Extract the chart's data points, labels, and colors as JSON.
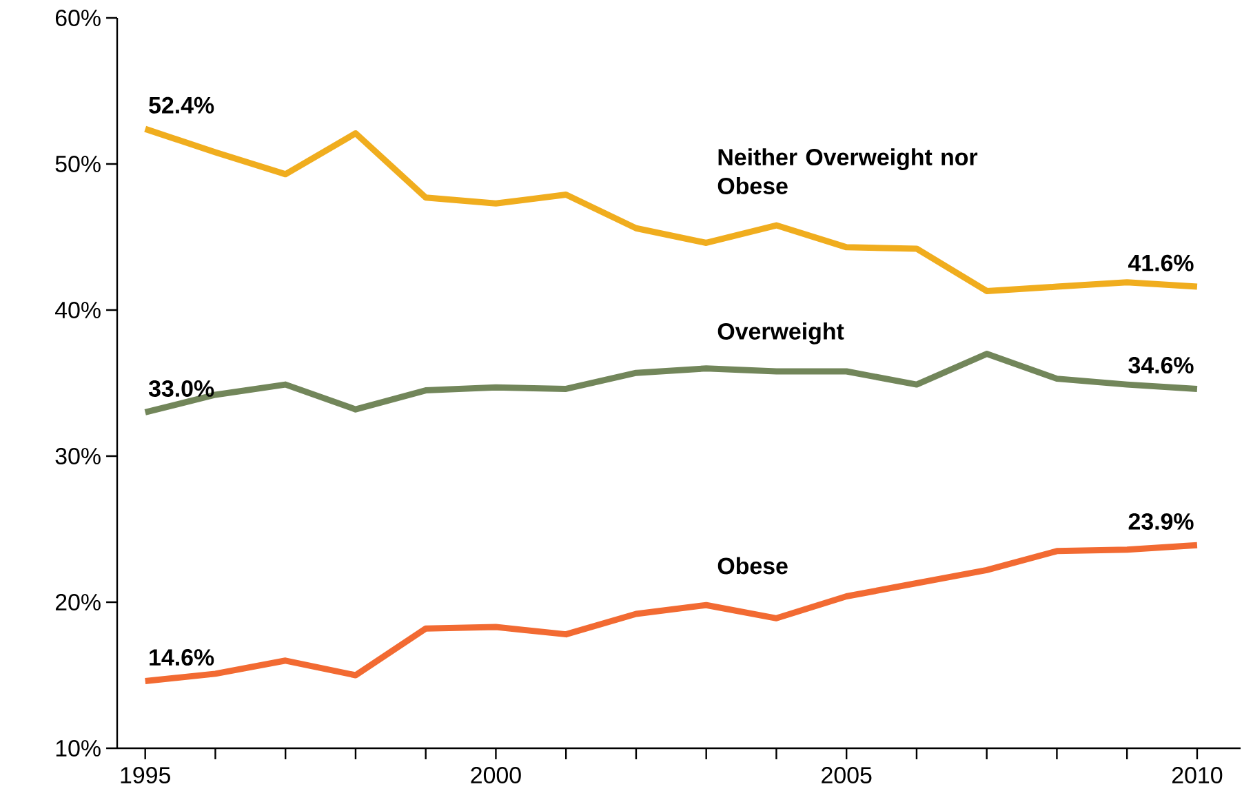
{
  "chart_data": {
    "type": "line",
    "x": [
      1995,
      1996,
      1997,
      1998,
      1999,
      2000,
      2001,
      2002,
      2003,
      2004,
      2005,
      2006,
      2007,
      2008,
      2009,
      2010
    ],
    "series": [
      {
        "name": "Neither Overweight nor Obese",
        "color": "#f0ad1e",
        "values": [
          52.4,
          50.8,
          49.3,
          52.1,
          47.7,
          47.3,
          47.9,
          45.6,
          44.6,
          45.8,
          44.3,
          44.2,
          41.3,
          41.6,
          41.9,
          41.6
        ],
        "value_labels": [
          "52.4%",
          null,
          null,
          null,
          null,
          null,
          null,
          null,
          null,
          null,
          null,
          null,
          null,
          null,
          null,
          "41.6%"
        ]
      },
      {
        "name": "Overweight",
        "color": "#72865a",
        "values": [
          33.0,
          34.2,
          34.9,
          33.2,
          34.5,
          34.7,
          34.6,
          35.7,
          36.0,
          35.8,
          35.8,
          34.9,
          37.0,
          35.3,
          34.9,
          34.6
        ],
        "value_labels": [
          "33.0%",
          null,
          null,
          null,
          null,
          null,
          null,
          null,
          null,
          null,
          null,
          null,
          null,
          null,
          null,
          "34.6%"
        ]
      },
      {
        "name": "Obese",
        "color": "#f26a32",
        "values": [
          14.6,
          15.1,
          16.0,
          15.0,
          18.2,
          18.3,
          17.8,
          19.2,
          19.8,
          18.9,
          20.4,
          21.3,
          22.2,
          23.5,
          23.6,
          23.9
        ],
        "value_labels": [
          "14.6%",
          null,
          null,
          null,
          null,
          null,
          null,
          null,
          null,
          null,
          null,
          null,
          null,
          null,
          null,
          "23.9%"
        ]
      }
    ],
    "xlim": [
      1994.6,
      2010.62
    ],
    "ylim": [
      10,
      60
    ],
    "xticks": [
      1995,
      {
        "value": 1996,
        "label": null
      },
      {
        "value": 1997,
        "label": null
      },
      {
        "value": 1998,
        "label": null
      },
      {
        "value": 1999,
        "label": null
      },
      2000,
      {
        "value": 2001,
        "label": null
      },
      {
        "value": 2002,
        "label": null
      },
      {
        "value": 2003,
        "label": null
      },
      {
        "value": 2004,
        "label": null
      },
      2005,
      {
        "value": 2006,
        "label": null
      },
      {
        "value": 2007,
        "label": null
      },
      {
        "value": 2008,
        "label": null
      },
      {
        "value": 2009,
        "label": null
      },
      2010
    ],
    "yticks": [
      {
        "value": 10,
        "label": "10%"
      },
      {
        "value": 20,
        "label": "20%"
      },
      {
        "value": 30,
        "label": "30%"
      },
      {
        "value": 40,
        "label": "40%"
      },
      {
        "value": 50,
        "label": "50%"
      },
      {
        "value": 60,
        "label": "60%"
      }
    ],
    "grid": false,
    "marker": "none",
    "line_style": "solid"
  }
}
